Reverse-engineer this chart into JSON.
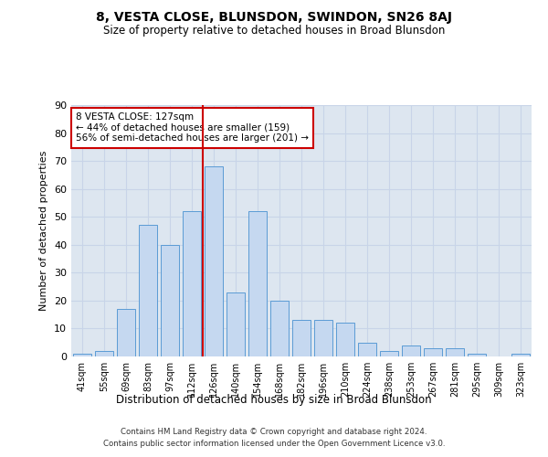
{
  "title": "8, VESTA CLOSE, BLUNSDON, SWINDON, SN26 8AJ",
  "subtitle": "Size of property relative to detached houses in Broad Blunsdon",
  "xlabel": "Distribution of detached houses by size in Broad Blunsdon",
  "ylabel": "Number of detached properties",
  "categories": [
    "41sqm",
    "55sqm",
    "69sqm",
    "83sqm",
    "97sqm",
    "112sqm",
    "126sqm",
    "140sqm",
    "154sqm",
    "168sqm",
    "182sqm",
    "196sqm",
    "210sqm",
    "224sqm",
    "238sqm",
    "253sqm",
    "267sqm",
    "281sqm",
    "295sqm",
    "309sqm",
    "323sqm"
  ],
  "values": [
    1,
    2,
    17,
    47,
    40,
    52,
    68,
    23,
    52,
    20,
    13,
    13,
    12,
    5,
    2,
    4,
    3,
    3,
    1,
    0,
    1
  ],
  "bar_color": "#c5d8f0",
  "bar_edge_color": "#5b9bd5",
  "vline_x_idx": 6,
  "vline_color": "#cc0000",
  "annotation_line1": "8 VESTA CLOSE: 127sqm",
  "annotation_line2": "← 44% of detached houses are smaller (159)",
  "annotation_line3": "56% of semi-detached houses are larger (201) →",
  "annotation_box_color": "#ffffff",
  "annotation_box_edge": "#cc0000",
  "ylim": [
    0,
    90
  ],
  "yticks": [
    0,
    10,
    20,
    30,
    40,
    50,
    60,
    70,
    80,
    90
  ],
  "grid_color": "#c8d4e8",
  "bg_color": "#dde6f0",
  "fig_bg_color": "#ffffff",
  "footer1": "Contains HM Land Registry data © Crown copyright and database right 2024.",
  "footer2": "Contains public sector information licensed under the Open Government Licence v3.0."
}
